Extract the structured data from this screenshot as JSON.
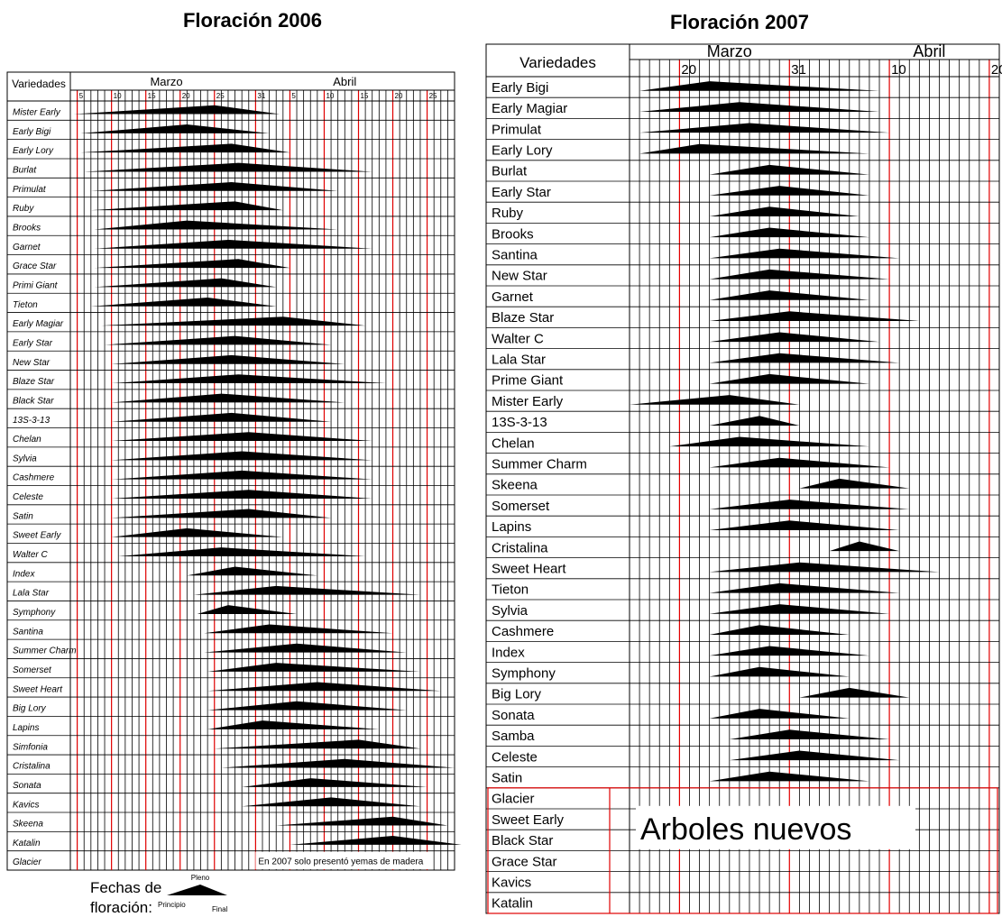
{
  "chart_data": [
    {
      "type": "gantt",
      "title": "Floración 2006",
      "row_header": "Variedades",
      "month_labels": [
        {
          "label": "Marzo",
          "day": 18
        },
        {
          "label": "Abril",
          "day": 44
        }
      ],
      "tick_labels": [
        {
          "label": "5",
          "day": 5
        },
        {
          "label": "10",
          "day": 10
        },
        {
          "label": "15",
          "day": 15
        },
        {
          "label": "20",
          "day": 20
        },
        {
          "label": "25",
          "day": 25
        },
        {
          "label": "31",
          "day": 31
        },
        {
          "label": "5",
          "day": 36
        },
        {
          "label": "10",
          "day": 41
        },
        {
          "label": "15",
          "day": 46
        },
        {
          "label": "20",
          "day": 51
        },
        {
          "label": "25",
          "day": 56
        }
      ],
      "x_unit": "day of March (32 = 1 April)",
      "xlim": [
        4,
        60
      ],
      "red_lines": [
        5,
        10,
        15,
        20,
        25,
        31,
        36,
        41,
        46,
        51,
        56
      ],
      "rows": [
        {
          "name": "Mister Early",
          "start": 4.5,
          "peak": 25,
          "end": 34.5
        },
        {
          "name": "Early Bigi",
          "start": 5.5,
          "peak": 21,
          "end": 33
        },
        {
          "name": "Early Lory",
          "start": 5.5,
          "peak": 27.5,
          "end": 36
        },
        {
          "name": "Burlat",
          "start": 6,
          "peak": 28.5,
          "end": 48
        },
        {
          "name": "Primulat",
          "start": 7,
          "peak": 27.5,
          "end": 43
        },
        {
          "name": "Ruby",
          "start": 7,
          "peak": 28,
          "end": 35
        },
        {
          "name": "Brooks",
          "start": 7.5,
          "peak": 21,
          "end": 43
        },
        {
          "name": "Garnet",
          "start": 7.5,
          "peak": 27,
          "end": 48
        },
        {
          "name": "Grace Star",
          "start": 7.5,
          "peak": 28.5,
          "end": 36
        },
        {
          "name": "Primi Giant",
          "start": 7.5,
          "peak": 26,
          "end": 34
        },
        {
          "name": "Tieton",
          "start": 7,
          "peak": 24,
          "end": 34
        },
        {
          "name": "Early Magiar",
          "start": 8.5,
          "peak": 35,
          "end": 47
        },
        {
          "name": "Early Star",
          "start": 9,
          "peak": 28,
          "end": 42
        },
        {
          "name": "New Star",
          "start": 10,
          "peak": 27.5,
          "end": 44
        },
        {
          "name": "Blaze Star",
          "start": 10,
          "peak": 28.5,
          "end": 50
        },
        {
          "name": "Black Star",
          "start": 10,
          "peak": 26,
          "end": 44
        },
        {
          "name": "13S-3-13",
          "start": 10,
          "peak": 27.5,
          "end": 42
        },
        {
          "name": "Chelan",
          "start": 10,
          "peak": 30,
          "end": 48
        },
        {
          "name": "Sylvia",
          "start": 10,
          "peak": 29,
          "end": 48
        },
        {
          "name": "Cashmere",
          "start": 10,
          "peak": 29,
          "end": 48
        },
        {
          "name": "Celeste",
          "start": 10,
          "peak": 30,
          "end": 48
        },
        {
          "name": "Satin",
          "start": 10,
          "peak": 30,
          "end": 42
        },
        {
          "name": "Sweet Early",
          "start": 10,
          "peak": 21,
          "end": 35
        },
        {
          "name": "Walter C",
          "start": 11,
          "peak": 26,
          "end": 47
        },
        {
          "name": "Index",
          "start": 21,
          "peak": 28,
          "end": 40
        },
        {
          "name": "Lala Star",
          "start": 22,
          "peak": 34,
          "end": 55
        },
        {
          "name": "Symphony",
          "start": 22.5,
          "peak": 27,
          "end": 37
        },
        {
          "name": "Santina",
          "start": 23.5,
          "peak": 33,
          "end": 51
        },
        {
          "name": "Summer Charm",
          "start": 23.5,
          "peak": 37,
          "end": 53
        },
        {
          "name": "Somerset",
          "start": 24,
          "peak": 34,
          "end": 55
        },
        {
          "name": "Sweet Heart",
          "start": 24,
          "peak": 40,
          "end": 58
        },
        {
          "name": "Big Lory",
          "start": 24,
          "peak": 37,
          "end": 53
        },
        {
          "name": "Lapins",
          "start": 24,
          "peak": 32,
          "end": 49
        },
        {
          "name": "Simfonia",
          "start": 25,
          "peak": 46,
          "end": 55
        },
        {
          "name": "Cristalina",
          "start": 26,
          "peak": 44,
          "end": 60
        },
        {
          "name": "Sonata",
          "start": 29,
          "peak": 39,
          "end": 56
        },
        {
          "name": "Kavics",
          "start": 29,
          "peak": 42,
          "end": 55
        },
        {
          "name": "Skeena",
          "start": 34,
          "peak": 51,
          "end": 59
        },
        {
          "name": "Katalin",
          "start": 36,
          "peak": 51,
          "end": 61
        },
        {
          "name": "Glacier"
        }
      ],
      "note": {
        "text": "En 2007 solo presentó yemas de madera",
        "row": "Glacier"
      },
      "legend": {
        "title": "Fechas de floración",
        "start": "Principio",
        "peak": "Pleno",
        "end": "Final"
      }
    },
    {
      "type": "gantt",
      "title": "Floración 2007",
      "row_header": "Variedades",
      "month_labels": [
        {
          "label": "Marzo",
          "day": 25
        },
        {
          "label": "Abril",
          "day": 45
        }
      ],
      "tick_labels": [
        {
          "label": "20",
          "day": 20
        },
        {
          "label": "31",
          "day": 31
        },
        {
          "label": "10",
          "day": 41
        },
        {
          "label": "20",
          "day": 51
        }
      ],
      "x_unit": "day of March (32 = 1 April)",
      "xlim": [
        15,
        52
      ],
      "red_lines": [
        20,
        31,
        41,
        51
      ],
      "rows": [
        {
          "name": "Early Bigi",
          "start": 16,
          "peak": 23,
          "end": 40
        },
        {
          "name": "Early Magiar",
          "start": 16,
          "peak": 26,
          "end": 40
        },
        {
          "name": "Primulat",
          "start": 16,
          "peak": 27,
          "end": 41
        },
        {
          "name": "Early Lory",
          "start": 16,
          "peak": 22,
          "end": 39
        },
        {
          "name": "Burlat",
          "start": 23,
          "peak": 29,
          "end": 39
        },
        {
          "name": "Early Star",
          "start": 23,
          "peak": 30,
          "end": 39
        },
        {
          "name": "Ruby",
          "start": 23,
          "peak": 29,
          "end": 38
        },
        {
          "name": "Brooks",
          "start": 23,
          "peak": 29,
          "end": 39
        },
        {
          "name": "Santina",
          "start": 23,
          "peak": 30,
          "end": 42
        },
        {
          "name": "New Star",
          "start": 23,
          "peak": 29,
          "end": 41
        },
        {
          "name": "Garnet",
          "start": 23,
          "peak": 29,
          "end": 39
        },
        {
          "name": "Blaze Star",
          "start": 23,
          "peak": 31,
          "end": 44
        },
        {
          "name": "Walter C",
          "start": 23,
          "peak": 30,
          "end": 40
        },
        {
          "name": "Lala Star",
          "start": 23,
          "peak": 30,
          "end": 42
        },
        {
          "name": "Prime Giant",
          "start": 23,
          "peak": 29,
          "end": 39
        },
        {
          "name": "Mister Early",
          "start": 15,
          "peak": 25,
          "end": 32
        },
        {
          "name": "13S-3-13",
          "start": 23,
          "peak": 28,
          "end": 32
        },
        {
          "name": "Chelan",
          "start": 19,
          "peak": 26,
          "end": 39
        },
        {
          "name": "Summer Charm",
          "start": 23,
          "peak": 30,
          "end": 41
        },
        {
          "name": "Skeena",
          "start": 32,
          "peak": 36,
          "end": 43
        },
        {
          "name": "Somerset",
          "start": 23,
          "peak": 31,
          "end": 43
        },
        {
          "name": "Lapins",
          "start": 23,
          "peak": 31,
          "end": 42
        },
        {
          "name": "Cristalina",
          "start": 35,
          "peak": 38,
          "end": 42
        },
        {
          "name": "Sweet Heart",
          "start": 23,
          "peak": 32,
          "end": 46
        },
        {
          "name": "Tieton",
          "start": 23,
          "peak": 30,
          "end": 42
        },
        {
          "name": "Sylvia",
          "start": 23,
          "peak": 30,
          "end": 41
        },
        {
          "name": "Cashmere",
          "start": 23,
          "peak": 28,
          "end": 37
        },
        {
          "name": "Index",
          "start": 23,
          "peak": 29,
          "end": 39
        },
        {
          "name": "Symphony",
          "start": 23,
          "peak": 28,
          "end": 37
        },
        {
          "name": "Big Lory",
          "start": 32,
          "peak": 37,
          "end": 43
        },
        {
          "name": "Sonata",
          "start": 23,
          "peak": 28,
          "end": 37
        },
        {
          "name": "Samba",
          "start": 25,
          "peak": 31,
          "end": 41
        },
        {
          "name": "Celeste",
          "start": 25,
          "peak": 32,
          "end": 42
        },
        {
          "name": "Satin",
          "start": 23,
          "peak": 29,
          "end": 39
        },
        {
          "name": "Glacier"
        },
        {
          "name": "Sweet Early"
        },
        {
          "name": "Black Star"
        },
        {
          "name": "Grace Star"
        },
        {
          "name": "Kavics"
        },
        {
          "name": "Katalin"
        }
      ],
      "note": {
        "text": "Arboles nuevos",
        "rows": [
          "Glacier",
          "Sweet Early",
          "Black Star",
          "Grace Star",
          "Kavics",
          "Katalin"
        ]
      }
    }
  ]
}
